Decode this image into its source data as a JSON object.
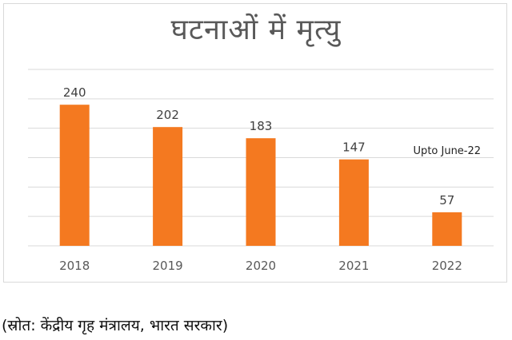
{
  "title": "घटनाओं में मृत्यु",
  "source": "(स्रोत: केंद्रीय गृह मंत्रालय, भारत सरकार)",
  "colors": {
    "bar": "#f47920",
    "grid": "#d9d9d9",
    "text": "#595959"
  },
  "chart_data": {
    "type": "bar",
    "title": "घटनाओं में मृत्यु",
    "categories": [
      "2018",
      "2019",
      "2020",
      "2021",
      "2022"
    ],
    "values": [
      240,
      202,
      183,
      147,
      57
    ],
    "ylim": [
      0,
      300
    ],
    "y_gridlines": [
      0,
      50,
      100,
      150,
      200,
      250,
      300
    ],
    "y_axis_labels_shown": false,
    "grid": true,
    "annotations": [
      {
        "category": "2022",
        "text": "Upto June-22"
      }
    ]
  }
}
